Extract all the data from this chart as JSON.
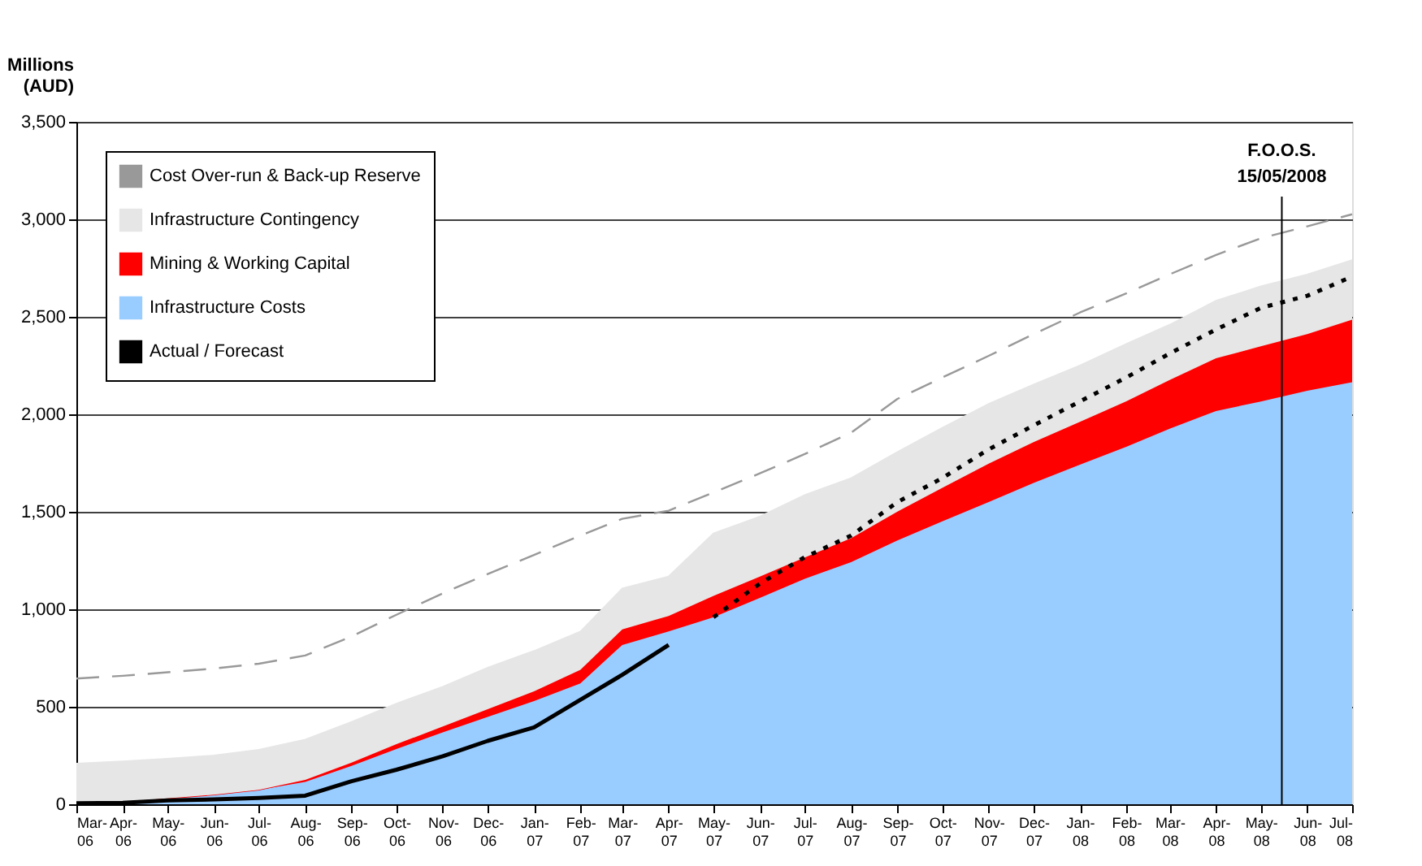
{
  "chart_data": {
    "type": "area",
    "ylabel": "Millions (AUD)",
    "stacked": true,
    "legend": "top left",
    "grid": "y",
    "x": [
      "2006-03",
      "2006-04",
      "2006-05",
      "2006-06",
      "2006-07",
      "2006-08",
      "2006-09",
      "2006-10",
      "2006-11",
      "2006-12",
      "2007-01",
      "2007-02",
      "2007-03",
      "2007-04",
      "2007-05",
      "2007-06",
      "2007-07",
      "2007-08",
      "2007-09",
      "2007-10",
      "2007-11",
      "2007-12",
      "2008-01",
      "2008-02",
      "2008-03",
      "2008-04",
      "2008-05",
      "2008-06",
      "2008-07"
    ],
    "xlim": [
      "2006-03",
      "2008-07"
    ],
    "xticks": [
      {
        "value": "2006-03",
        "label": "Mar-06"
      },
      {
        "value": "2006-04",
        "label": "Apr-06"
      },
      {
        "value": "2006-05",
        "label": "May-06"
      },
      {
        "value": "2006-06",
        "label": "Jun-06"
      },
      {
        "value": "2006-07",
        "label": "Jul-06"
      },
      {
        "value": "2006-08",
        "label": "Aug-06"
      },
      {
        "value": "2006-09",
        "label": "Sep-06"
      },
      {
        "value": "2006-10",
        "label": "Oct-06"
      },
      {
        "value": "2006-11",
        "label": "Nov-06"
      },
      {
        "value": "2006-12",
        "label": "Dec-06"
      },
      {
        "value": "2007-01",
        "label": "Jan-07"
      },
      {
        "value": "2007-02",
        "label": "Feb-07"
      },
      {
        "value": "2007-03",
        "label": "Mar-07"
      },
      {
        "value": "2007-04",
        "label": "Apr-07"
      },
      {
        "value": "2007-05",
        "label": "May-07"
      },
      {
        "value": "2007-06",
        "label": "Jun-07"
      },
      {
        "value": "2007-07",
        "label": "Jul-07"
      },
      {
        "value": "2007-08",
        "label": "Aug-07"
      },
      {
        "value": "2007-09",
        "label": "Sep-07"
      },
      {
        "value": "2007-10",
        "label": "Oct-07"
      },
      {
        "value": "2007-11",
        "label": "Nov-07"
      },
      {
        "value": "2007-12",
        "label": "Dec-07"
      },
      {
        "value": "2008-01",
        "label": "Jan-08"
      },
      {
        "value": "2008-02",
        "label": "Feb-08"
      },
      {
        "value": "2008-03",
        "label": "Mar-08"
      },
      {
        "value": "2008-04",
        "label": "Apr-08"
      },
      {
        "value": "2008-05",
        "label": "May-08"
      },
      {
        "value": "2008-06",
        "label": "Jun-08"
      },
      {
        "value": "2008-07",
        "label": "Jul-08"
      }
    ],
    "ylim": [
      0,
      3500
    ],
    "yticks": [
      0,
      500,
      {
        "value": 1000,
        "label": "1,000"
      },
      {
        "value": 1500,
        "label": "1,500"
      },
      {
        "value": 2000,
        "label": "2,000"
      },
      {
        "value": 2500,
        "label": "2,500"
      },
      {
        "value": 3000,
        "label": "3,000"
      },
      {
        "value": 3500,
        "label": "3,500"
      }
    ],
    "series": [
      {
        "name": "Infrastructure Costs",
        "color": "#99ccff",
        "values": [
          5,
          12,
          30,
          49,
          74,
          115,
          197,
          283,
          369,
          448,
          529,
          620,
          817,
          886,
          959,
          1058,
          1156,
          1242,
          1353,
          1451,
          1550,
          1648,
          1742,
          1833,
          1926,
          2017,
          2066,
          2121,
          2165
        ]
      },
      {
        "name": "Mining & Working Capital",
        "color": "#ff0000",
        "values": [
          0,
          0,
          0,
          0,
          0,
          10,
          17,
          25,
          30,
          40,
          50,
          70,
          80,
          80,
          110,
          110,
          110,
          123,
          148,
          172,
          197,
          209,
          219,
          234,
          250,
          270,
          283,
          290,
          320
        ]
      },
      {
        "name": "Infrastructure Contingency",
        "color": "#e6e6e6",
        "values": [
          204,
          209,
          204,
          202,
          206,
          207,
          209,
          209,
          204,
          213,
          208,
          196,
          210,
          203,
          321,
          308,
          321,
          308,
          307,
          308,
          307,
          296,
          290,
          295,
          284,
          296,
          308,
          307,
          307
        ]
      },
      {
        "name": "Cost Over-run & Back-up Reserve",
        "type": "line",
        "line_style": "dashed",
        "color": "#999999",
        "values": [
          645,
          659,
          677,
          696,
          721,
          763,
          861,
          972,
          1082,
          1181,
          1279,
          1378,
          1464,
          1506,
          1599,
          1697,
          1796,
          1906,
          2079,
          2189,
          2300,
          2411,
          2522,
          2620,
          2718,
          2817,
          2903,
          2964,
          3026
        ]
      },
      {
        "name": "Actual / Forecast",
        "type": "line",
        "line_style": "solid",
        "color": "#000000",
        "values": [
          5,
          7,
          20,
          25,
          32,
          44,
          118,
          177,
          246,
          325,
          394,
          536,
          664,
          817,
          null,
          null,
          null,
          null,
          null,
          null,
          null,
          null,
          null,
          null,
          null,
          null,
          null,
          null,
          null
        ]
      },
      {
        "type": "line",
        "line_style": "dotted",
        "color": "#000000",
        "values": [
          null,
          null,
          null,
          null,
          null,
          null,
          null,
          null,
          null,
          null,
          null,
          null,
          null,
          null,
          959,
          1132,
          1267,
          1378,
          1550,
          1673,
          1820,
          1943,
          2066,
          2189,
          2312,
          2435,
          2546,
          2608,
          2706
        ]
      }
    ],
    "ref_lines": [
      {
        "axis": "x",
        "value": "2008-05-15",
        "label": "F.O.O.S. 15/05/2008",
        "color": "#000000"
      }
    ]
  }
}
